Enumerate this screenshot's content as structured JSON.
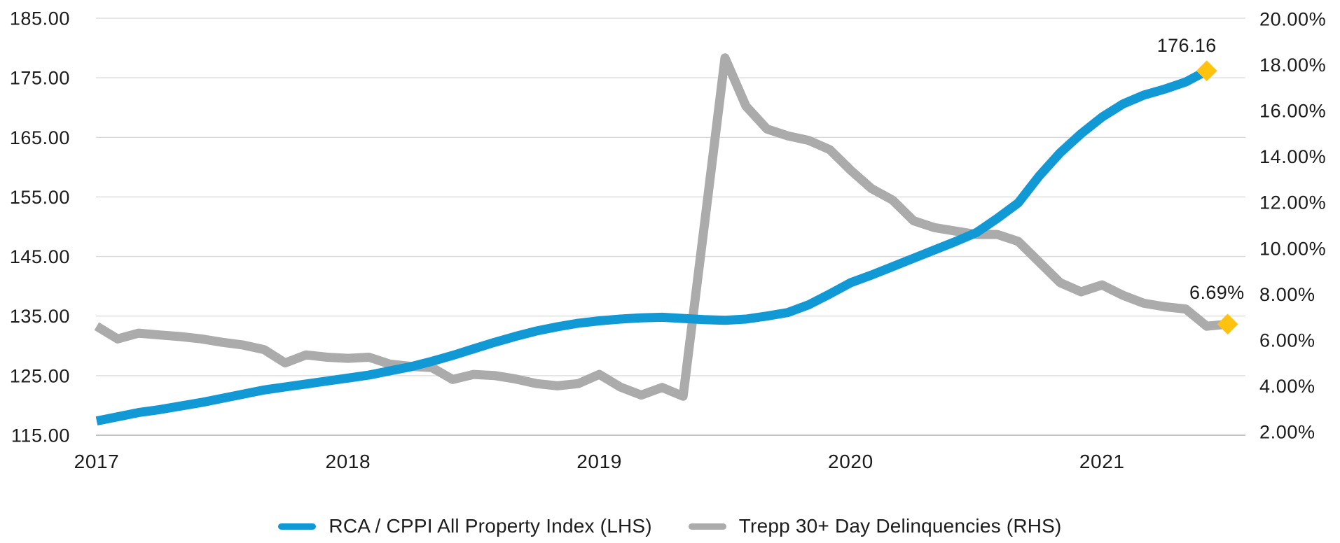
{
  "chart_data": {
    "type": "line",
    "title": "",
    "grid": true,
    "legend_position": "bottom",
    "x_axis": {
      "year_labels": [
        "2017",
        "2018",
        "2019",
        "2020",
        "2021"
      ],
      "points_per_year": 12
    },
    "left_axis": {
      "tick_labels": [
        "185.00",
        "175.00",
        "165.00",
        "155.00",
        "145.00",
        "135.00",
        "125.00",
        "115.00"
      ],
      "min": 115,
      "max": 185
    },
    "right_axis": {
      "tick_labels": [
        "20.00%",
        "18.00%",
        "16.00%",
        "14.00%",
        "12.00%",
        "10.00%",
        "8.00%",
        "6.00%",
        "4.00%",
        "2.00%"
      ],
      "min": 2,
      "max": 20
    },
    "series": [
      {
        "name": "RCA / CPPI All Property Index (LHS)",
        "axis": "left",
        "color": "#1199D6",
        "end_label": "176.16",
        "values": [
          117.4,
          118.1,
          118.8,
          119.3,
          119.9,
          120.5,
          121.2,
          121.9,
          122.6,
          123.1,
          123.6,
          124.1,
          124.6,
          125.1,
          125.8,
          126.5,
          127.4,
          128.4,
          129.5,
          130.6,
          131.6,
          132.5,
          133.2,
          133.8,
          134.2,
          134.5,
          134.7,
          134.8,
          134.6,
          134.4,
          134.3,
          134.5,
          135.0,
          135.6,
          136.9,
          138.7,
          140.6,
          141.9,
          143.3,
          144.7,
          146.1,
          147.5,
          149.0,
          151.4,
          154.0,
          158.5,
          162.4,
          165.6,
          168.4,
          170.6,
          172.1,
          173.1,
          174.3,
          176.16
        ]
      },
      {
        "name": "Trepp 30+ Day Delinquencies (RHS)",
        "axis": "right",
        "color": "#ABABAB",
        "end_label": "6.69%",
        "values": [
          6.6,
          6.05,
          6.3,
          6.22,
          6.15,
          6.05,
          5.9,
          5.78,
          5.58,
          5.0,
          5.35,
          5.25,
          5.2,
          5.25,
          4.95,
          4.85,
          4.8,
          4.28,
          4.5,
          4.45,
          4.3,
          4.1,
          4.0,
          4.1,
          4.5,
          3.95,
          3.6,
          3.93,
          3.55,
          10.9,
          18.3,
          16.2,
          15.2,
          14.9,
          14.7,
          14.3,
          13.4,
          12.6,
          12.1,
          11.2,
          10.9,
          10.75,
          10.6,
          10.6,
          10.3,
          9.4,
          8.5,
          8.1,
          8.4,
          7.95,
          7.6,
          7.45,
          7.35,
          6.6,
          6.69
        ]
      }
    ],
    "end_marker": {
      "shape": "diamond",
      "color": "#FFC20E"
    }
  },
  "colors": {
    "background": "#FFFFFF",
    "gridline": "#DADADA",
    "axis_line": "#C2C2C2",
    "text": "#1B1B1B",
    "blue_series": "#1199D6",
    "gray_series": "#ABABAB",
    "marker_yellow": "#FFC20E"
  }
}
